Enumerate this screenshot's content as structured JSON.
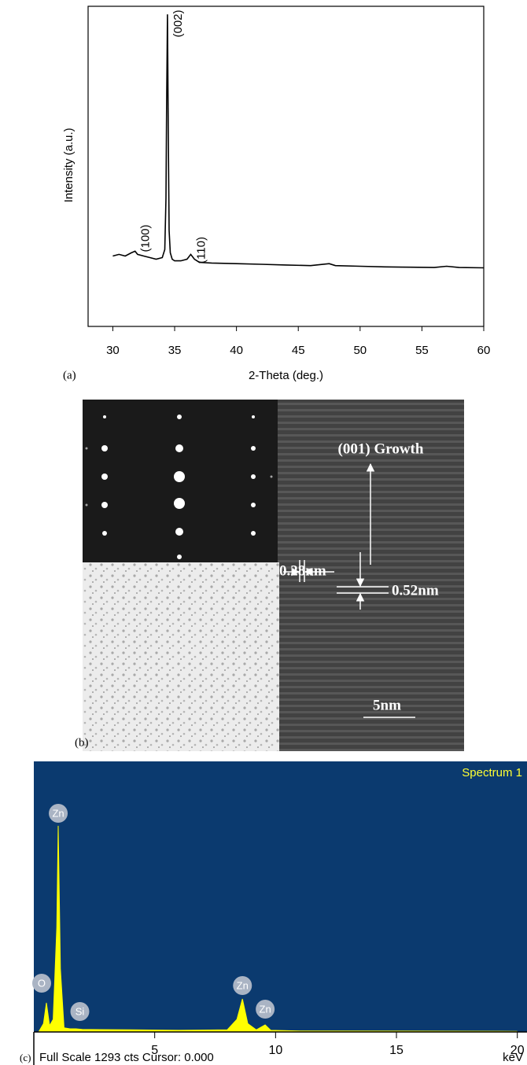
{
  "panel_labels": [
    "(a)",
    "(b)",
    "(c)"
  ],
  "chart_data": [
    {
      "type": "line",
      "xlabel": "2-Theta (deg.)",
      "ylabel": "Intensity (a.u.)",
      "color": "#000000",
      "xlim": [
        28,
        60
      ],
      "xticks": [
        30,
        35,
        40,
        45,
        50,
        55,
        60
      ],
      "ylim": [
        0,
        100
      ],
      "x": [
        30,
        30.5,
        31,
        31.5,
        31.8,
        32,
        32.5,
        33,
        33.5,
        34,
        34.2,
        34.3,
        34.35,
        34.42,
        34.48,
        34.55,
        34.65,
        34.8,
        35,
        35.5,
        36,
        36.3,
        36.6,
        37,
        38,
        39,
        40,
        42,
        44,
        46,
        47.5,
        48,
        50,
        52,
        54,
        56,
        57,
        58,
        60
      ],
      "values": [
        22,
        22.5,
        22,
        23,
        23.5,
        22.5,
        22,
        21.5,
        21,
        21.5,
        24,
        40,
        68,
        97.5,
        62,
        30,
        23,
        21,
        20.5,
        20.5,
        21,
        22.5,
        21,
        20,
        19.8,
        19.7,
        19.6,
        19.4,
        19.2,
        19,
        19.6,
        19,
        18.8,
        18.6,
        18.5,
        18.4,
        18.8,
        18.4,
        18.3
      ],
      "annotations": [
        {
          "text": "(002)",
          "x": 34.42
        },
        {
          "text": "(100)",
          "x": 31.8
        },
        {
          "text": "(110)",
          "x": 36.3
        }
      ]
    },
    {
      "type": "area",
      "title": "Spectrum 1",
      "xlabel": "keV",
      "footer": "Full Scale 1293 cts Cursor: 0.000",
      "color": "#ffff00",
      "background": "#0b3a6f",
      "xlim": [
        0,
        20.4
      ],
      "xticks": [
        5,
        10,
        15,
        20
      ],
      "ylim": [
        0,
        1293
      ],
      "x": [
        0.2,
        0.4,
        0.52,
        0.65,
        0.8,
        0.95,
        1.01,
        1.1,
        1.25,
        1.5,
        1.74,
        2,
        4,
        6,
        8,
        8.4,
        8.63,
        8.85,
        9.2,
        9.57,
        9.8,
        11,
        20
      ],
      "values": [
        0,
        40,
        139,
        30,
        60,
        500,
        985,
        300,
        20,
        15,
        15,
        12,
        10,
        8,
        10,
        60,
        158,
        40,
        10,
        34,
        8,
        5,
        3
      ],
      "peak_labels": [
        {
          "text": "Zn",
          "x": 1.01
        },
        {
          "text": "O",
          "x": 0.52
        },
        {
          "text": "Si",
          "x": 1.74
        },
        {
          "text": "Zn",
          "x": 8.63
        },
        {
          "text": "Zn",
          "x": 9.57
        }
      ]
    }
  ],
  "tem_image": {
    "annotations": [
      "(001) Growth",
      "0.28nm",
      "0.52nm",
      "5nm"
    ]
  }
}
